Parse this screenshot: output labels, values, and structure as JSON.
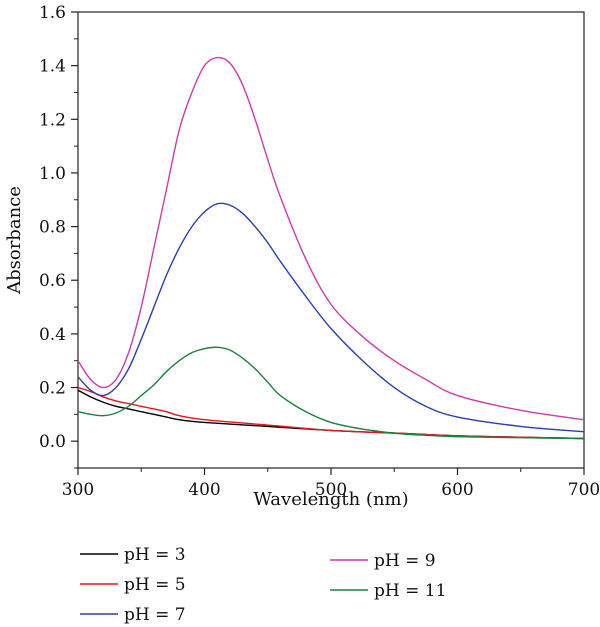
{
  "chart_data": {
    "type": "line",
    "title": "",
    "xlabel": "Wavelength (nm)",
    "ylabel": "Absorbance",
    "xlim": [
      300,
      700
    ],
    "ylim": [
      -0.1,
      1.6
    ],
    "xticks": [
      300,
      400,
      500,
      600,
      700
    ],
    "yticks": [
      0.0,
      0.2,
      0.4,
      0.6,
      0.8,
      1.0,
      1.2,
      1.4,
      1.6
    ],
    "ytick_labels": [
      "0.0",
      "0.2",
      "0.4",
      "0.6",
      "0.8",
      "1.0",
      "1.2",
      "1.4",
      "1.6"
    ],
    "grid": false,
    "legend_position": "bottom",
    "series": [
      {
        "name": "pH = 3",
        "color": "#000000",
        "x": [
          300,
          310,
          320,
          330,
          340,
          350,
          360,
          370,
          380,
          400,
          450,
          500,
          550,
          600,
          650,
          700
        ],
        "y": [
          0.19,
          0.165,
          0.145,
          0.13,
          0.12,
          0.11,
          0.1,
          0.09,
          0.08,
          0.07,
          0.055,
          0.04,
          0.03,
          0.02,
          0.015,
          0.01
        ]
      },
      {
        "name": "pH = 5",
        "color": "#e8141c",
        "x": [
          300,
          310,
          320,
          330,
          340,
          350,
          360,
          370,
          380,
          400,
          450,
          500,
          550,
          600,
          650,
          700
        ],
        "y": [
          0.2,
          0.185,
          0.165,
          0.15,
          0.14,
          0.13,
          0.12,
          0.11,
          0.095,
          0.08,
          0.06,
          0.04,
          0.03,
          0.02,
          0.015,
          0.01
        ]
      },
      {
        "name": "pH = 7",
        "color": "#2b3fb0",
        "x": [
          300,
          310,
          320,
          330,
          340,
          350,
          360,
          370,
          380,
          390,
          400,
          410,
          420,
          430,
          440,
          450,
          460,
          480,
          500,
          525,
          550,
          575,
          600,
          650,
          700
        ],
        "y": [
          0.24,
          0.19,
          0.17,
          0.2,
          0.27,
          0.38,
          0.5,
          0.62,
          0.72,
          0.8,
          0.855,
          0.885,
          0.88,
          0.85,
          0.8,
          0.74,
          0.67,
          0.54,
          0.42,
          0.3,
          0.2,
          0.13,
          0.09,
          0.055,
          0.035
        ]
      },
      {
        "name": "pH = 9",
        "color": "#cc3ba8",
        "x": [
          300,
          310,
          320,
          330,
          340,
          350,
          360,
          370,
          380,
          390,
          400,
          410,
          420,
          430,
          440,
          450,
          460,
          480,
          500,
          525,
          550,
          575,
          600,
          650,
          700
        ],
        "y": [
          0.3,
          0.23,
          0.2,
          0.23,
          0.33,
          0.5,
          0.72,
          0.94,
          1.16,
          1.3,
          1.4,
          1.43,
          1.41,
          1.33,
          1.2,
          1.05,
          0.91,
          0.68,
          0.51,
          0.39,
          0.3,
          0.23,
          0.17,
          0.115,
          0.08
        ]
      },
      {
        "name": "pH = 11",
        "color": "#1a8040",
        "x": [
          300,
          310,
          320,
          330,
          340,
          350,
          360,
          370,
          380,
          390,
          400,
          410,
          420,
          430,
          440,
          450,
          460,
          480,
          500,
          525,
          550,
          575,
          600,
          650,
          700
        ],
        "y": [
          0.11,
          0.1,
          0.095,
          0.105,
          0.13,
          0.17,
          0.21,
          0.26,
          0.3,
          0.33,
          0.345,
          0.35,
          0.34,
          0.31,
          0.27,
          0.22,
          0.17,
          0.11,
          0.07,
          0.045,
          0.03,
          0.022,
          0.017,
          0.013,
          0.01
        ]
      }
    ]
  }
}
